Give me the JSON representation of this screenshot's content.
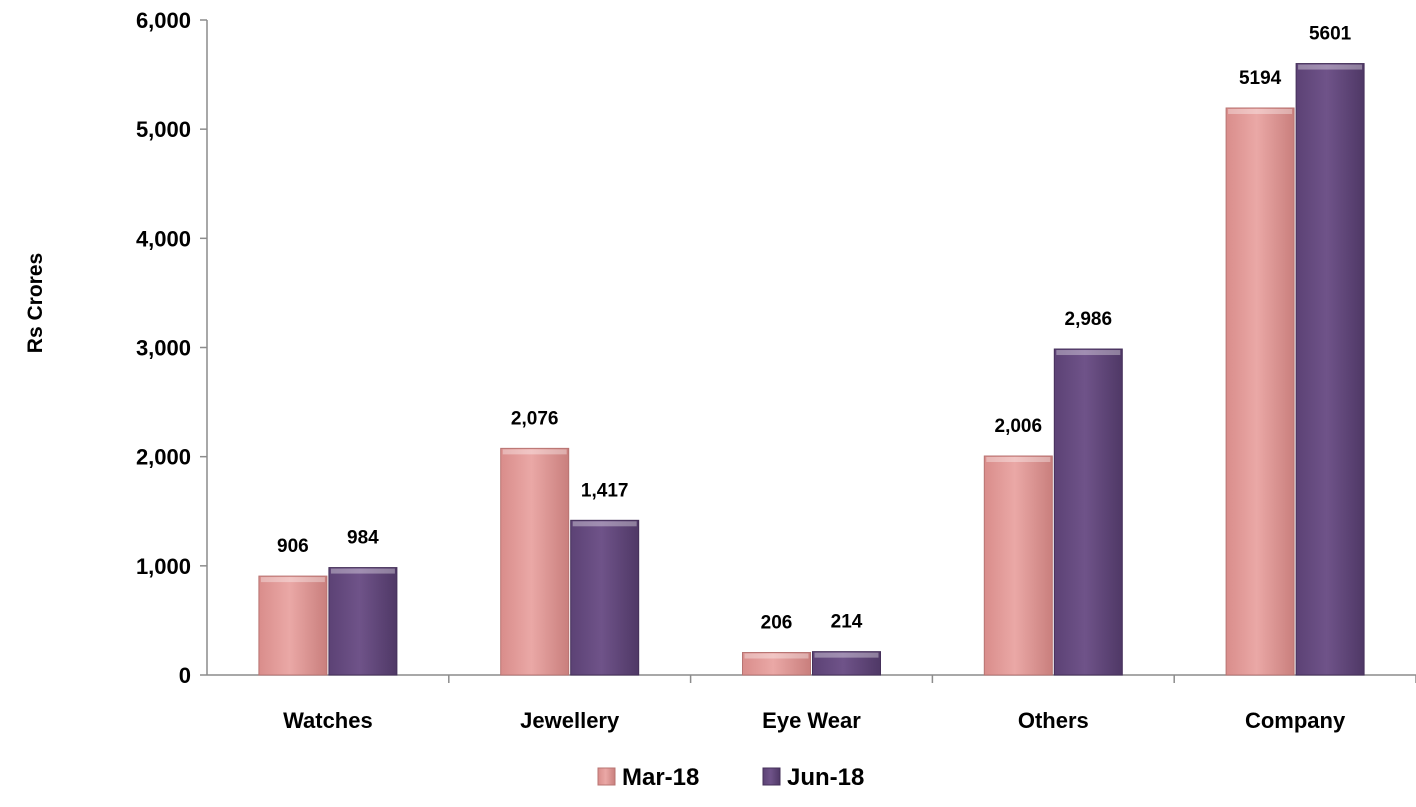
{
  "chart_data": {
    "type": "bar",
    "title": "",
    "xlabel": "",
    "ylabel": "Rs Crores",
    "ylim": [
      0,
      6000
    ],
    "yticks": [
      0,
      1000,
      2000,
      3000,
      4000,
      5000,
      6000
    ],
    "ytick_labels": [
      "0",
      "1,000",
      "2,000",
      "3,000",
      "4,000",
      "5,000",
      "6,000"
    ],
    "categories": [
      "Watches",
      "Jewellery",
      "Eye Wear",
      "Others",
      "Company"
    ],
    "series": [
      {
        "name": "Mar-18",
        "color": "#e6a19f",
        "values": [
          906,
          2076,
          206,
          2006,
          5194
        ],
        "labels": [
          "906",
          "2,076",
          "206",
          "2,006",
          "5194"
        ]
      },
      {
        "name": "Jun-18",
        "color": "#6b4f85",
        "values": [
          984,
          1417,
          214,
          2986,
          5601
        ],
        "labels": [
          "984",
          "1,417",
          "214",
          "2,986",
          "5601"
        ]
      }
    ],
    "legend": "bottom-center",
    "grid": false
  }
}
